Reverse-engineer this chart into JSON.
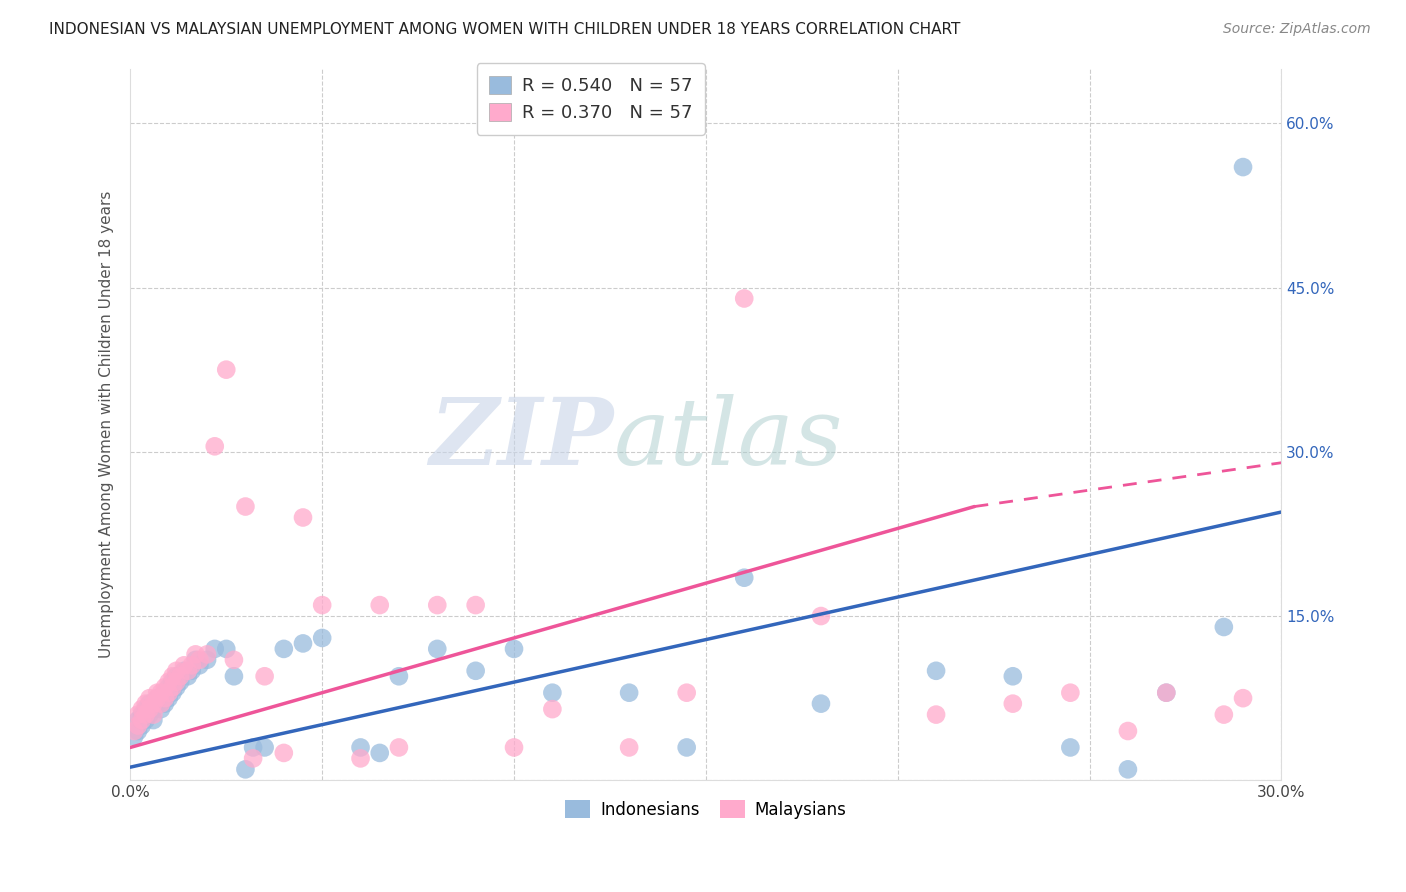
{
  "title": "INDONESIAN VS MALAYSIAN UNEMPLOYMENT AMONG WOMEN WITH CHILDREN UNDER 18 YEARS CORRELATION CHART",
  "source": "Source: ZipAtlas.com",
  "ylabel": "Unemployment Among Women with Children Under 18 years",
  "xlim": [
    0.0,
    0.3
  ],
  "ylim": [
    0.0,
    0.65
  ],
  "ytick_vals": [
    0.0,
    0.15,
    0.3,
    0.45,
    0.6
  ],
  "xtick_vals": [
    0.0,
    0.05,
    0.1,
    0.15,
    0.2,
    0.25,
    0.3
  ],
  "legend_blue_r": "0.540",
  "legend_blue_n": "57",
  "legend_pink_r": "0.370",
  "legend_pink_n": "57",
  "legend_label_indonesians": "Indonesians",
  "legend_label_malaysians": "Malaysians",
  "blue_scatter_color": "#99BBDD",
  "pink_scatter_color": "#FFAACC",
  "line_blue_color": "#3366BB",
  "line_pink_color": "#EE5599",
  "watermark_zip": "ZIP",
  "watermark_atlas": "atlas",
  "background_color": "#FFFFFF",
  "indonesians_x": [
    0.001,
    0.002,
    0.002,
    0.003,
    0.003,
    0.004,
    0.004,
    0.005,
    0.005,
    0.006,
    0.006,
    0.007,
    0.007,
    0.008,
    0.008,
    0.009,
    0.009,
    0.01,
    0.01,
    0.011,
    0.011,
    0.012,
    0.012,
    0.013,
    0.014,
    0.015,
    0.016,
    0.017,
    0.018,
    0.02,
    0.022,
    0.025,
    0.027,
    0.03,
    0.032,
    0.035,
    0.04,
    0.045,
    0.05,
    0.06,
    0.065,
    0.07,
    0.08,
    0.09,
    0.1,
    0.11,
    0.13,
    0.145,
    0.16,
    0.18,
    0.21,
    0.23,
    0.245,
    0.26,
    0.27,
    0.285,
    0.29
  ],
  "indonesians_y": [
    0.04,
    0.045,
    0.055,
    0.05,
    0.06,
    0.055,
    0.065,
    0.06,
    0.07,
    0.055,
    0.065,
    0.07,
    0.075,
    0.065,
    0.075,
    0.07,
    0.08,
    0.075,
    0.085,
    0.08,
    0.09,
    0.085,
    0.095,
    0.09,
    0.1,
    0.095,
    0.1,
    0.11,
    0.105,
    0.11,
    0.12,
    0.12,
    0.095,
    0.01,
    0.03,
    0.03,
    0.12,
    0.125,
    0.13,
    0.03,
    0.025,
    0.095,
    0.12,
    0.1,
    0.12,
    0.08,
    0.08,
    0.03,
    0.185,
    0.07,
    0.1,
    0.095,
    0.03,
    0.01,
    0.08,
    0.14,
    0.56
  ],
  "malaysians_x": [
    0.001,
    0.002,
    0.002,
    0.003,
    0.003,
    0.004,
    0.004,
    0.005,
    0.005,
    0.006,
    0.006,
    0.007,
    0.007,
    0.008,
    0.008,
    0.009,
    0.009,
    0.01,
    0.01,
    0.011,
    0.011,
    0.012,
    0.012,
    0.013,
    0.014,
    0.015,
    0.016,
    0.017,
    0.018,
    0.02,
    0.022,
    0.025,
    0.027,
    0.03,
    0.032,
    0.035,
    0.04,
    0.045,
    0.05,
    0.06,
    0.065,
    0.07,
    0.08,
    0.09,
    0.1,
    0.11,
    0.13,
    0.145,
    0.16,
    0.18,
    0.21,
    0.23,
    0.245,
    0.26,
    0.27,
    0.285,
    0.29
  ],
  "malaysians_y": [
    0.045,
    0.05,
    0.06,
    0.055,
    0.065,
    0.06,
    0.07,
    0.065,
    0.075,
    0.06,
    0.07,
    0.075,
    0.08,
    0.07,
    0.08,
    0.075,
    0.085,
    0.08,
    0.09,
    0.085,
    0.095,
    0.09,
    0.1,
    0.095,
    0.105,
    0.1,
    0.105,
    0.115,
    0.11,
    0.115,
    0.305,
    0.375,
    0.11,
    0.25,
    0.02,
    0.095,
    0.025,
    0.24,
    0.16,
    0.02,
    0.16,
    0.03,
    0.16,
    0.16,
    0.03,
    0.065,
    0.03,
    0.08,
    0.44,
    0.15,
    0.06,
    0.07,
    0.08,
    0.045,
    0.08,
    0.06,
    0.075
  ],
  "blue_line_x0": 0.0,
  "blue_line_y0": 0.012,
  "blue_line_x1": 0.3,
  "blue_line_y1": 0.245,
  "pink_line_x0": 0.0,
  "pink_line_y0": 0.03,
  "pink_line_x1": 0.22,
  "pink_line_y1": 0.25,
  "pink_line_dash_x0": 0.22,
  "pink_line_dash_y0": 0.25,
  "pink_line_dash_x1": 0.3,
  "pink_line_dash_y1": 0.29
}
